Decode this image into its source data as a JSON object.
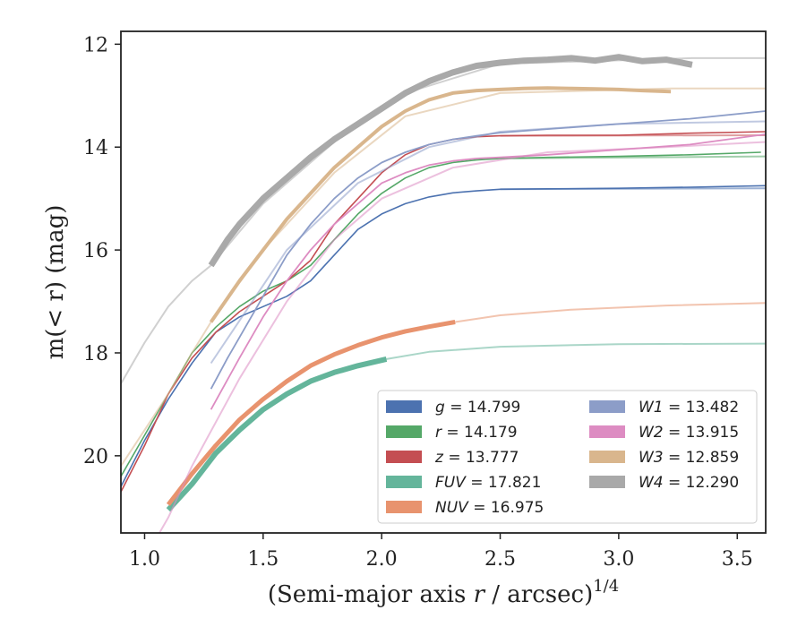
{
  "chart_data": {
    "type": "line",
    "xlabel": "(Semi-major axis r / arcsec)",
    "xlabel_var": "r",
    "xlabel_exp": "1/4",
    "ylabel": "m(< r) (mag)",
    "xlim": [
      0.9,
      3.62
    ],
    "ylim": [
      21.5,
      11.75
    ],
    "y_inverted": true,
    "xticks": [
      "1.0",
      "1.5",
      "2.0",
      "2.5",
      "3.0",
      "3.5"
    ],
    "yticks": [
      "12",
      "14",
      "16",
      "18",
      "20"
    ],
    "legend_position": "lower-right",
    "series": [
      {
        "name": "g",
        "value": "14.799",
        "color": "#4c72b0",
        "width": 1.6,
        "x": [
          0.9,
          1.0,
          1.1,
          1.2,
          1.3,
          1.4,
          1.5,
          1.6,
          1.7,
          1.8,
          1.9,
          2.0,
          2.1,
          2.2,
          2.3,
          2.4,
          2.5,
          2.7,
          3.0,
          3.3,
          3.62
        ],
        "y": [
          20.6,
          19.7,
          18.9,
          18.2,
          17.6,
          17.3,
          17.1,
          16.9,
          16.6,
          16.1,
          15.6,
          15.3,
          15.1,
          14.97,
          14.89,
          14.85,
          14.82,
          14.81,
          14.8,
          14.78,
          14.75
        ],
        "ext_x": [
          2.5,
          3.62
        ],
        "ext_y": [
          14.82,
          14.8
        ]
      },
      {
        "name": "r",
        "value": "14.179",
        "color": "#55a868",
        "width": 1.6,
        "x": [
          0.9,
          1.0,
          1.1,
          1.2,
          1.3,
          1.4,
          1.5,
          1.6,
          1.7,
          1.8,
          1.9,
          2.0,
          2.1,
          2.2,
          2.3,
          2.4,
          2.5,
          2.7,
          3.0,
          3.3,
          3.6
        ],
        "y": [
          20.4,
          19.6,
          18.8,
          18.0,
          17.5,
          17.1,
          16.8,
          16.6,
          16.3,
          15.8,
          15.3,
          14.9,
          14.6,
          14.4,
          14.3,
          14.25,
          14.22,
          14.2,
          14.18,
          14.15,
          14.1
        ],
        "ext_x": [
          2.5,
          3.62
        ],
        "ext_y": [
          14.22,
          14.18
        ]
      },
      {
        "name": "z",
        "value": "13.777",
        "color": "#c44e52",
        "width": 1.6,
        "x": [
          0.9,
          1.0,
          1.1,
          1.2,
          1.3,
          1.4,
          1.5,
          1.6,
          1.7,
          1.8,
          1.9,
          2.0,
          2.1,
          2.2,
          2.3,
          2.4,
          2.5,
          2.7,
          3.0,
          3.3,
          3.62
        ],
        "y": [
          20.7,
          19.8,
          18.8,
          18.1,
          17.6,
          17.2,
          16.9,
          16.6,
          16.2,
          15.5,
          15.0,
          14.5,
          14.15,
          13.95,
          13.85,
          13.8,
          13.78,
          13.77,
          13.77,
          13.73,
          13.7
        ],
        "ext_x": [
          2.5,
          3.62
        ],
        "ext_y": [
          13.78,
          13.77
        ]
      },
      {
        "name": "FUV",
        "value": "17.821",
        "color": "#64b59b",
        "width": 6,
        "x": [
          1.1,
          1.2,
          1.3,
          1.4,
          1.5,
          1.6,
          1.7,
          1.8,
          1.9,
          2.02
        ],
        "y": [
          21.05,
          20.55,
          19.95,
          19.5,
          19.1,
          18.8,
          18.55,
          18.38,
          18.25,
          18.12
        ],
        "ext_x": [
          2.02,
          2.2,
          2.5,
          3.0,
          3.62
        ],
        "ext_y": [
          18.12,
          17.98,
          17.88,
          17.83,
          17.82
        ]
      },
      {
        "name": "NUV",
        "value": "16.975",
        "color": "#e8936e",
        "width": 5,
        "x": [
          1.1,
          1.2,
          1.3,
          1.4,
          1.5,
          1.6,
          1.7,
          1.8,
          1.9,
          2.0,
          2.1,
          2.2,
          2.31
        ],
        "y": [
          20.95,
          20.35,
          19.8,
          19.3,
          18.9,
          18.55,
          18.25,
          18.03,
          17.85,
          17.7,
          17.58,
          17.49,
          17.4
        ],
        "ext_x": [
          2.31,
          2.5,
          2.8,
          3.2,
          3.62
        ],
        "ext_y": [
          17.4,
          17.27,
          17.16,
          17.08,
          17.03
        ]
      },
      {
        "name": "W1",
        "value": "13.482",
        "color": "#8c9dc8",
        "width": 1.8,
        "x": [
          1.28,
          1.35,
          1.4,
          1.5,
          1.6,
          1.7,
          1.8,
          1.9,
          2.0,
          2.1,
          2.2,
          2.3,
          2.4,
          2.5,
          2.7,
          3.0,
          3.3,
          3.62
        ],
        "y": [
          18.7,
          18.1,
          17.7,
          16.9,
          16.1,
          15.5,
          15.0,
          14.6,
          14.3,
          14.1,
          13.95,
          13.85,
          13.78,
          13.72,
          13.65,
          13.55,
          13.45,
          13.3
        ],
        "ext_x": [
          1.28,
          1.6,
          1.9,
          2.2,
          2.5,
          3.0,
          3.62
        ],
        "ext_y": [
          18.2,
          16.0,
          14.7,
          14.0,
          13.7,
          13.55,
          13.5
        ]
      },
      {
        "name": "W2",
        "value": "13.915",
        "color": "#dd8cc2",
        "width": 1.8,
        "x": [
          1.28,
          1.4,
          1.5,
          1.6,
          1.7,
          1.8,
          1.9,
          2.0,
          2.1,
          2.2,
          2.3,
          2.4,
          2.5,
          2.7,
          3.0,
          3.3,
          3.62
        ],
        "y": [
          19.1,
          18.1,
          17.3,
          16.6,
          16.0,
          15.5,
          15.1,
          14.7,
          14.5,
          14.35,
          14.27,
          14.22,
          14.2,
          14.15,
          14.05,
          13.95,
          13.75
        ],
        "ext_x": [
          1.0,
          1.1,
          1.2,
          1.4,
          1.6,
          1.8,
          2.0,
          2.3,
          2.7,
          3.2,
          3.62
        ],
        "ext_y": [
          22.0,
          21.2,
          20.2,
          18.5,
          17.0,
          15.8,
          15.0,
          14.4,
          14.1,
          14.0,
          13.9
        ]
      },
      {
        "name": "W3",
        "value": "12.859",
        "color": "#d9b68d",
        "width": 4,
        "x": [
          1.28,
          1.4,
          1.5,
          1.6,
          1.7,
          1.8,
          1.9,
          2.0,
          2.1,
          2.2,
          2.3,
          2.4,
          2.5,
          2.6,
          2.7,
          2.8,
          2.9,
          3.0,
          3.1,
          3.22
        ],
        "y": [
          17.4,
          16.6,
          16.0,
          15.4,
          14.9,
          14.4,
          14.0,
          13.6,
          13.3,
          13.08,
          12.95,
          12.9,
          12.88,
          12.86,
          12.85,
          12.86,
          12.87,
          12.88,
          12.9,
          12.92
        ],
        "ext_x": [
          0.9,
          1.0,
          1.1,
          1.2,
          1.28,
          1.5,
          1.8,
          2.1,
          2.5,
          3.22,
          3.62
        ],
        "ext_y": [
          20.2,
          19.5,
          18.8,
          18.0,
          17.4,
          16.0,
          14.5,
          13.4,
          12.95,
          12.86,
          12.86
        ]
      },
      {
        "name": "W4",
        "value": "12.290",
        "color": "#a9a9a9",
        "width": 7,
        "x": [
          1.28,
          1.35,
          1.4,
          1.5,
          1.6,
          1.7,
          1.8,
          1.9,
          2.0,
          2.1,
          2.2,
          2.3,
          2.4,
          2.5,
          2.6,
          2.7,
          2.8,
          2.9,
          3.0,
          3.1,
          3.2,
          3.31
        ],
        "y": [
          16.3,
          15.8,
          15.5,
          15.0,
          14.6,
          14.2,
          13.85,
          13.55,
          13.25,
          12.95,
          12.72,
          12.55,
          12.42,
          12.36,
          12.32,
          12.3,
          12.27,
          12.32,
          12.25,
          12.33,
          12.3,
          12.4
        ],
        "ext_x": [
          0.9,
          1.0,
          1.1,
          1.2,
          1.28,
          1.5,
          1.8,
          2.1,
          2.5,
          3.31,
          3.62
        ],
        "ext_y": [
          18.6,
          17.8,
          17.1,
          16.6,
          16.3,
          15.1,
          13.9,
          12.95,
          12.38,
          12.27,
          12.27
        ]
      }
    ]
  }
}
